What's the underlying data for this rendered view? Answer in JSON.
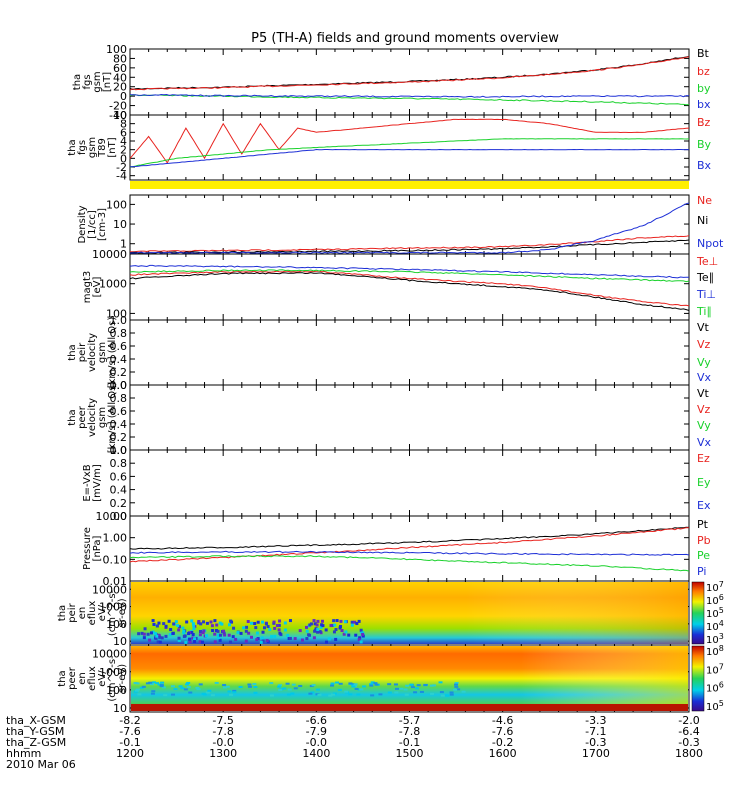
{
  "title": "P5 (TH-A) fields and ground moments overview",
  "colors": {
    "black": "#000000",
    "red": "#e8231f",
    "green": "#19d12b",
    "blue": "#1d2fd6",
    "yellow": "#ffef00"
  },
  "chart_data": [
    {
      "type": "line",
      "id": "panel1",
      "ylabel": [
        "tha",
        "fgs",
        "gsm",
        "[nT]"
      ],
      "ylim": [
        -40,
        100
      ],
      "yticks": [
        "100",
        "80",
        "60",
        "40",
        "20",
        "0",
        "-20",
        "-40"
      ],
      "legend": [
        "Bt",
        "bz",
        "by",
        "bx"
      ],
      "legend_colors": [
        "black",
        "red",
        "green",
        "blue"
      ],
      "series": [
        {
          "name": "Bt",
          "color": "black",
          "x": [
            1200,
            1240,
            1300,
            1350,
            1400,
            1450,
            1500,
            1550,
            1600,
            1650,
            1700,
            1750,
            1800
          ],
          "values": [
            15,
            17,
            19,
            22,
            25,
            28,
            31,
            35,
            40,
            47,
            56,
            68,
            85
          ]
        },
        {
          "name": "bz",
          "color": "red",
          "x": [
            1200,
            1240,
            1300,
            1350,
            1400,
            1450,
            1500,
            1550,
            1600,
            1650,
            1700,
            1750,
            1800
          ],
          "values": [
            14,
            16,
            18,
            21,
            24,
            27,
            30,
            34,
            39,
            46,
            55,
            67,
            84
          ]
        },
        {
          "name": "by",
          "color": "green",
          "x": [
            1200,
            1300,
            1400,
            1500,
            1600,
            1700,
            1800
          ],
          "values": [
            2,
            0,
            -3,
            -5,
            -8,
            -12,
            -18
          ]
        },
        {
          "name": "bx",
          "color": "blue",
          "x": [
            1200,
            1300,
            1400,
            1500,
            1600,
            1700,
            1800
          ],
          "values": [
            3,
            1,
            0,
            -1,
            -1,
            0,
            0
          ]
        }
      ]
    },
    {
      "type": "line",
      "id": "panel2",
      "ylabel": [
        "tha",
        "fgs",
        "gsm",
        "T89",
        "[nT]"
      ],
      "ylim": [
        -5,
        10
      ],
      "yticks": [
        "10",
        "8",
        "6",
        "4",
        "2",
        "0",
        "-2",
        "-4"
      ],
      "legend": [
        "Bz",
        "By",
        "Bx"
      ],
      "legend_colors": [
        "red",
        "green",
        "blue"
      ],
      "series": [
        {
          "name": "Bz",
          "color": "red",
          "x": [
            1200,
            1220,
            1240,
            1260,
            1280,
            1300,
            1320,
            1340,
            1360,
            1380,
            1400,
            1450,
            1500,
            1550,
            1600,
            1650,
            1700,
            1750,
            1800
          ],
          "values": [
            0,
            5,
            -1,
            7,
            0,
            8,
            1,
            8,
            2,
            7,
            6,
            7,
            8,
            9,
            9,
            8,
            6,
            6,
            7
          ]
        },
        {
          "name": "By",
          "color": "green",
          "x": [
            1200,
            1250,
            1300,
            1350,
            1400,
            1450,
            1500,
            1550,
            1600,
            1650,
            1700,
            1750,
            1800
          ],
          "values": [
            -2,
            0,
            1,
            2,
            2.5,
            3,
            3.5,
            4,
            4.5,
            4.5,
            4.5,
            4.5,
            4.5
          ]
        },
        {
          "name": "Bx",
          "color": "blue",
          "x": [
            1200,
            1250,
            1300,
            1350,
            1400,
            1450,
            1500,
            1550,
            1600,
            1650,
            1700,
            1750,
            1800
          ],
          "values": [
            -2,
            -1,
            0,
            1,
            2,
            2,
            2,
            2,
            2,
            2,
            2,
            2,
            2
          ]
        }
      ]
    },
    {
      "type": "line",
      "id": "panel3",
      "ylabel": [
        "Density",
        "[1/cc]",
        "[cm-3]"
      ],
      "yscale": "log",
      "ylim": [
        0.3,
        300
      ],
      "yticks": [
        "100",
        "10",
        "1"
      ],
      "legend": [
        "Ne",
        "Ni",
        "Npot"
      ],
      "legend_colors": [
        "red",
        "black",
        "blue"
      ],
      "series": [
        {
          "name": "Ne",
          "color": "red",
          "x": [
            1200,
            1300,
            1400,
            1500,
            1600,
            1650,
            1700,
            1750,
            1800
          ],
          "values": [
            0.4,
            0.45,
            0.5,
            0.6,
            0.7,
            0.9,
            1.3,
            2.0,
            2.5
          ]
        },
        {
          "name": "Ni",
          "color": "black",
          "x": [
            1200,
            1300,
            1400,
            1500,
            1600,
            1700,
            1800
          ],
          "values": [
            0.35,
            0.38,
            0.4,
            0.45,
            0.55,
            0.9,
            1.5
          ]
        },
        {
          "name": "Npot",
          "color": "blue",
          "x": [
            1200,
            1300,
            1400,
            1500,
            1600,
            1650,
            1700,
            1720,
            1750,
            1780,
            1800
          ],
          "values": [
            0.35,
            0.35,
            0.35,
            0.35,
            0.35,
            0.5,
            1.5,
            3,
            8,
            40,
            120
          ]
        }
      ]
    },
    {
      "type": "line",
      "id": "panel4",
      "ylabel": [
        "magt3",
        "[eV]"
      ],
      "yscale": "log",
      "ylim": [
        60,
        10000
      ],
      "yticks": [
        "10000",
        "1000",
        "100"
      ],
      "legend": [
        "Te⊥",
        "Te∥",
        "Ti⊥",
        "Ti∥"
      ],
      "legend_colors": [
        "red",
        "black",
        "blue",
        "green"
      ],
      "series": [
        {
          "name": "Te⊥",
          "color": "red",
          "x": [
            1200,
            1300,
            1400,
            1450,
            1500,
            1550,
            1600,
            1650,
            1700,
            1750,
            1800
          ],
          "values": [
            2000,
            2500,
            2600,
            2000,
            1500,
            1200,
            1000,
            700,
            400,
            250,
            180
          ]
        },
        {
          "name": "Te∥",
          "color": "black",
          "x": [
            1200,
            1300,
            1400,
            1450,
            1500,
            1550,
            1600,
            1650,
            1700,
            1750,
            1800
          ],
          "values": [
            1500,
            2200,
            2300,
            1800,
            1300,
            1000,
            800,
            600,
            350,
            200,
            130
          ]
        },
        {
          "name": "Ti⊥",
          "color": "blue",
          "x": [
            1200,
            1300,
            1400,
            1500,
            1600,
            1700,
            1800
          ],
          "values": [
            4000,
            3800,
            3500,
            3000,
            2500,
            2000,
            1600
          ]
        },
        {
          "name": "Ti∥",
          "color": "green",
          "x": [
            1200,
            1300,
            1400,
            1500,
            1600,
            1700,
            1800
          ],
          "values": [
            2500,
            2800,
            2800,
            2500,
            2000,
            1500,
            1200
          ]
        }
      ]
    },
    {
      "type": "line",
      "id": "panel5",
      "ylabel": [
        "tha",
        "peir",
        "velocity",
        "gsm",
        "[km/s] (All Qs)"
      ],
      "ylim": [
        0,
        1
      ],
      "yticks": [
        "1.0",
        "0.8",
        "0.6",
        "0.4",
        "0.2",
        "0.0"
      ],
      "legend": [
        "Vt",
        "Vz",
        "Vy",
        "Vx"
      ],
      "legend_colors": [
        "black",
        "red",
        "green",
        "blue"
      ],
      "series": []
    },
    {
      "type": "line",
      "id": "panel6",
      "ylabel": [
        "tha",
        "peer",
        "velocity",
        "gsm",
        "[km/s] (All Qs)"
      ],
      "ylim": [
        0,
        1
      ],
      "yticks": [
        "1.0",
        "0.8",
        "0.6",
        "0.4",
        "0.2",
        "0.0"
      ],
      "legend": [
        "Vt",
        "Vz",
        "Vy",
        "Vx"
      ],
      "legend_colors": [
        "black",
        "red",
        "green",
        "blue"
      ],
      "series": []
    },
    {
      "type": "line",
      "id": "panel7",
      "ylabel": [
        "E=-VxB",
        "[mV/m]"
      ],
      "ylim": [
        0,
        1
      ],
      "yticks": [
        "1.0",
        "0.8",
        "0.6",
        "0.4",
        "0.2",
        "0.0"
      ],
      "legend": [
        "Ez",
        "Ey",
        "Ex"
      ],
      "legend_colors": [
        "red",
        "green",
        "blue"
      ],
      "series": []
    },
    {
      "type": "line",
      "id": "panel8",
      "ylabel": [
        "Pressure",
        "[nPa]"
      ],
      "yscale": "log",
      "ylim": [
        0.01,
        10
      ],
      "yticks": [
        "10.00",
        "1.00",
        "0.10",
        "0.01"
      ],
      "legend": [
        "Pt",
        "Pb",
        "Pe",
        "Pi"
      ],
      "legend_colors": [
        "black",
        "red",
        "green",
        "blue"
      ],
      "series": [
        {
          "name": "Pt",
          "color": "black",
          "x": [
            1200,
            1300,
            1400,
            1500,
            1600,
            1700,
            1800
          ],
          "values": [
            0.3,
            0.35,
            0.45,
            0.6,
            0.9,
            1.5,
            3.0
          ]
        },
        {
          "name": "Pb",
          "color": "red",
          "x": [
            1200,
            1300,
            1400,
            1500,
            1600,
            1700,
            1800
          ],
          "values": [
            0.08,
            0.12,
            0.2,
            0.35,
            0.6,
            1.2,
            2.8
          ]
        },
        {
          "name": "Pe",
          "color": "green",
          "x": [
            1200,
            1300,
            1400,
            1500,
            1600,
            1700,
            1800
          ],
          "values": [
            0.12,
            0.14,
            0.14,
            0.1,
            0.07,
            0.05,
            0.03
          ]
        },
        {
          "name": "Pi",
          "color": "blue",
          "x": [
            1200,
            1300,
            1400,
            1500,
            1600,
            1700,
            1800
          ],
          "values": [
            0.2,
            0.22,
            0.22,
            0.2,
            0.18,
            0.17,
            0.16
          ]
        }
      ]
    },
    {
      "type": "heatmap",
      "id": "panel9",
      "ylabel": [
        "tha",
        "peir",
        "en",
        "eflux",
        "eV/",
        "(cm^2-s-",
        "sr-eV)"
      ],
      "yscale": "log",
      "ylim": [
        6,
        30000
      ],
      "yticks": [
        "10000",
        "1000",
        "100",
        "10"
      ],
      "colorbar_ticks": [
        "10^7",
        "10^6",
        "10^5",
        "10^4",
        "10^3"
      ]
    },
    {
      "type": "heatmap",
      "id": "panel10",
      "ylabel": [
        "tha",
        "peer",
        "en",
        "eflux",
        "eV/",
        "(cm^2-s-",
        "sr-eV)"
      ],
      "yscale": "log",
      "ylim": [
        6,
        30000
      ],
      "yticks": [
        "10000",
        "1000",
        "100",
        "10"
      ],
      "colorbar_ticks": [
        "10^8",
        "10^7",
        "10^6",
        "10^5"
      ]
    }
  ],
  "xaxis": {
    "range": [
      1200,
      1800
    ],
    "rows": [
      {
        "label": "tha_X-GSM",
        "values": [
          "-8.2",
          "-7.5",
          "-6.6",
          "-5.7",
          "-4.6",
          "-3.3",
          "-2.0"
        ]
      },
      {
        "label": "tha_Y-GSM",
        "values": [
          "-7.6",
          "-7.8",
          "-7.9",
          "-7.8",
          "-7.6",
          "-7.1",
          "-6.4"
        ]
      },
      {
        "label": "tha_Z-GSM",
        "values": [
          "-0.1",
          "-0.0",
          "-0.0",
          "-0.1",
          "-0.2",
          "-0.3",
          "-0.3"
        ]
      },
      {
        "label": "hhmm",
        "values": [
          "1200",
          "1300",
          "1400",
          "1500",
          "1600",
          "1700",
          "1800"
        ]
      }
    ],
    "date": "2010 Mar 06"
  }
}
